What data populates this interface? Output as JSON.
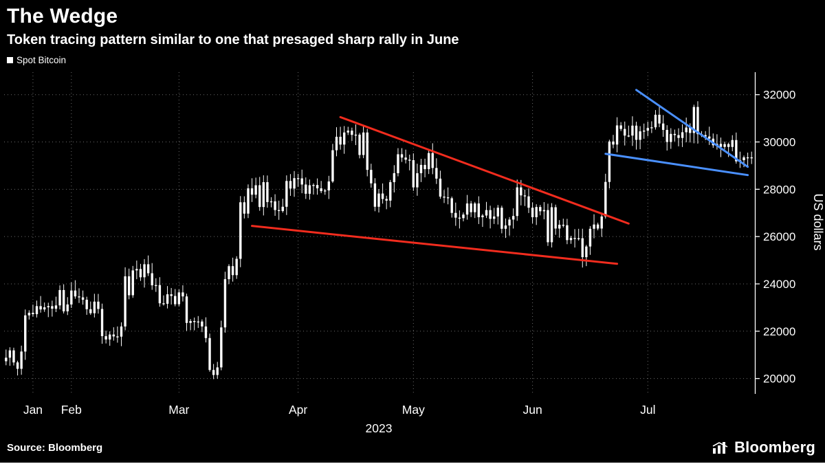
{
  "header": {
    "title": "The Wedge",
    "subtitle": "Token tracing pattern similar to one that presaged sharp rally in June"
  },
  "legend": {
    "label": "Spot Bitcoin",
    "marker_color": "#ffffff"
  },
  "footer": {
    "source": "Source: Bloomberg",
    "brand": "Bloomberg"
  },
  "colors": {
    "background": "#000000",
    "candles": "#ffffff",
    "grid": "#c8c8c8",
    "axis": "#ffffff",
    "text": "#ffffff",
    "red_trendline": "#f22c1e",
    "blue_trendline": "#4a90ff"
  },
  "chart_data": {
    "type": "candlestick",
    "title": "The Wedge",
    "series_name": "Spot Bitcoin",
    "ylabel": "US dollars",
    "grid": true,
    "legend_position": "top-left",
    "y_ticks": [
      20000,
      22000,
      24000,
      26000,
      28000,
      30000,
      32000
    ],
    "y_range": [
      19350,
      32950
    ],
    "start_date": "2023-01-15",
    "x_axis_year": "2023",
    "x_ticks": [
      {
        "label": "Jan",
        "date": "2023-01-22"
      },
      {
        "label": "Feb",
        "date": "2023-02-01"
      },
      {
        "label": "Mar",
        "date": "2023-03-01"
      },
      {
        "label": "Apr",
        "date": "2023-04-01"
      },
      {
        "label": "May",
        "date": "2023-05-01"
      },
      {
        "label": "Jun",
        "date": "2023-06-01"
      },
      {
        "label": "Jul",
        "date": "2023-07-01"
      }
    ],
    "daily_closes": [
      20880,
      21190,
      20680,
      20410,
      21140,
      22670,
      22780,
      22720,
      23060,
      22920,
      23010,
      23060,
      22950,
      23090,
      23740,
      22840,
      23130,
      23720,
      23470,
      23430,
      23330,
      22930,
      22760,
      23250,
      22940,
      21790,
      21650,
      21860,
      21780,
      21770,
      22200,
      24320,
      23520,
      24570,
      24630,
      24280,
      24830,
      24450,
      23940,
      23950,
      23180,
      23160,
      23560,
      23490,
      23140,
      23640,
      23470,
      22350,
      22430,
      22410,
      22410,
      22200,
      21710,
      20360,
      20150,
      20470,
      22160,
      24200,
      24750,
      24370,
      25060,
      27450,
      26970,
      28040,
      27770,
      28170,
      27250,
      28300,
      27460,
      27490,
      27120,
      27080,
      27260,
      28350,
      28030,
      28470,
      28460,
      28200,
      27810,
      28170,
      28180,
      28040,
      27920,
      27950,
      28330,
      29650,
      30220,
      29890,
      30400,
      30480,
      30300,
      30310,
      29450,
      30400,
      28820,
      28250,
      27260,
      27820,
      27590,
      27520,
      28300,
      28680,
      29480,
      29340,
      29250,
      29230,
      28080,
      28680,
      29030,
      28850,
      29530,
      28900,
      28450,
      27690,
      27660,
      27620,
      27000,
      26800,
      26780,
      26930,
      27400,
      27030,
      27400,
      26820,
      26890,
      27120,
      26750,
      26850,
      27220,
      26330,
      26470,
      26720,
      26870,
      28080,
      27740,
      27700,
      27220,
      26820,
      27250,
      27070,
      27120,
      25760,
      27240,
      26340,
      26500,
      26480,
      25850,
      25940,
      25900,
      25930,
      25130,
      25580,
      26330,
      26510,
      26340,
      26850,
      28310,
      30020,
      29890,
      30700,
      30550,
      30270,
      30270,
      30690,
      30090,
      30450,
      30480,
      30590,
      30620,
      31150,
      30780,
      30510,
      30000,
      30340,
      30290,
      30170,
      30410,
      30610,
      30380,
      31480,
      30330,
      30290,
      30230,
      30140,
      29860,
      29920,
      29790,
      29910,
      29790,
      30080,
      29180,
      29230,
      29350,
      29350,
      29310
    ],
    "trendlines": [
      {
        "name": "red-upper",
        "color_key": "red_trendline",
        "from": {
          "date": "2023-04-12",
          "value": 31050
        },
        "to": {
          "date": "2023-06-26",
          "value": 26550
        }
      },
      {
        "name": "red-lower",
        "color_key": "red_trendline",
        "from": {
          "date": "2023-03-20",
          "value": 26450
        },
        "to": {
          "date": "2023-06-23",
          "value": 24850
        }
      },
      {
        "name": "blue-upper",
        "color_key": "blue_trendline",
        "from": {
          "date": "2023-06-28",
          "value": 32200
        },
        "to": {
          "date": "2023-07-27",
          "value": 28950
        }
      },
      {
        "name": "blue-lower",
        "color_key": "blue_trendline",
        "from": {
          "date": "2023-06-20",
          "value": 29500
        },
        "to": {
          "date": "2023-07-27",
          "value": 28600
        }
      }
    ]
  }
}
